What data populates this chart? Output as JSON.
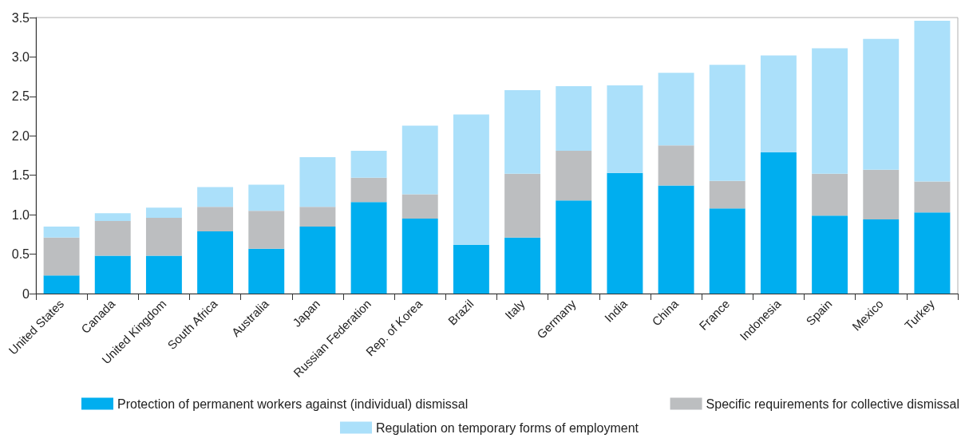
{
  "chart_data": {
    "type": "bar",
    "stacked": true,
    "categories": [
      "United States",
      "Canada",
      "United Kingdom",
      "South Africa",
      "Australia",
      "Japan",
      "Russian Federation",
      "Rep. of Korea",
      "Brazil",
      "Italy",
      "Germany",
      "India",
      "China",
      "France",
      "Indonesia",
      "Spain",
      "Mexico",
      "Turkey"
    ],
    "series": [
      {
        "name": "Protection of permanent workers against (individual) dismissal",
        "color": "#00aeef",
        "values": [
          0.23,
          0.48,
          0.48,
          0.79,
          0.57,
          0.85,
          1.16,
          0.95,
          0.62,
          0.71,
          1.18,
          1.53,
          1.37,
          1.08,
          1.79,
          0.99,
          0.94,
          1.03
        ]
      },
      {
        "name": "Specific requirements for collective dismissal",
        "color": "#bcbec0",
        "values": [
          0.48,
          0.44,
          0.48,
          0.31,
          0.48,
          0.25,
          0.31,
          0.31,
          0,
          0.81,
          0.63,
          0,
          0.51,
          0.35,
          0,
          0.53,
          0.63,
          0.39
        ]
      },
      {
        "name": "Regulation on temporary forms of employment",
        "color": "#abe0fa",
        "values": [
          0.14,
          0.1,
          0.13,
          0.25,
          0.33,
          0.63,
          0.34,
          0.87,
          1.65,
          1.06,
          0.82,
          1.11,
          0.92,
          1.47,
          1.23,
          1.59,
          1.66,
          2.04
        ]
      }
    ],
    "ylim": [
      0,
      3.5
    ],
    "yticks": [
      0,
      0.5,
      {
        "value": 1,
        "label": "1.0"
      },
      1.5,
      {
        "value": 2,
        "label": "2.0"
      },
      2.5,
      {
        "value": 3,
        "label": "3.0"
      },
      3.5
    ],
    "grid": false,
    "legend": "bottom"
  }
}
